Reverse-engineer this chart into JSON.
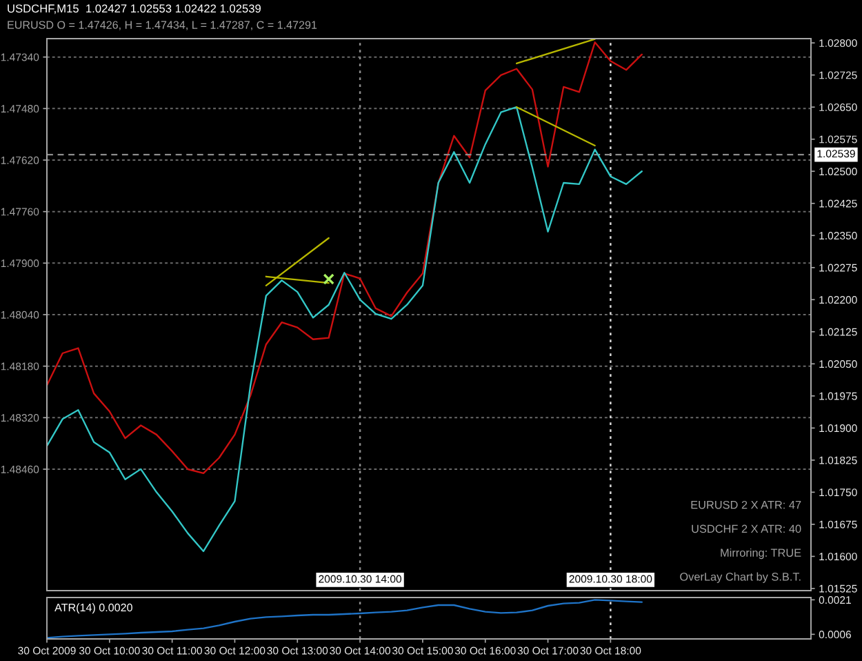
{
  "chart_data": [
    {
      "type": "line",
      "title": "USDCHF,M15  1.02427 1.02553 1.02422 1.02539",
      "subtitle": "EURUSD O = 1.47426, H = 1.47434, L = 1.47287, C = 1.47291",
      "x": [
        "2009-10-30T09:00",
        "2009-10-30T09:15",
        "2009-10-30T09:30",
        "2009-10-30T09:45",
        "2009-10-30T10:00",
        "2009-10-30T10:15",
        "2009-10-30T10:30",
        "2009-10-30T10:45",
        "2009-10-30T11:00",
        "2009-10-30T11:15",
        "2009-10-30T11:30",
        "2009-10-30T11:45",
        "2009-10-30T12:00",
        "2009-10-30T12:15",
        "2009-10-30T12:30",
        "2009-10-30T12:45",
        "2009-10-30T13:00",
        "2009-10-30T13:15",
        "2009-10-30T13:30",
        "2009-10-30T13:45",
        "2009-10-30T14:00",
        "2009-10-30T14:15",
        "2009-10-30T14:30",
        "2009-10-30T14:45",
        "2009-10-30T15:00",
        "2009-10-30T15:15",
        "2009-10-30T15:30",
        "2009-10-30T15:45",
        "2009-10-30T16:00",
        "2009-10-30T16:15",
        "2009-10-30T16:30",
        "2009-10-30T16:45",
        "2009-10-30T17:00",
        "2009-10-30T17:15",
        "2009-10-30T17:30",
        "2009-10-30T17:45",
        "2009-10-30T18:00",
        "2009-10-30T18:15",
        "2009-10-30T18:30"
      ],
      "series": [
        {
          "color": "#cc1010",
          "axis": "y",
          "values": [
            1.48232,
            1.48145,
            1.48131,
            1.48254,
            1.48303,
            1.48376,
            1.48341,
            1.48366,
            1.48411,
            1.4846,
            1.48471,
            1.48429,
            1.48366,
            1.4826,
            1.48121,
            1.48061,
            1.48075,
            1.48107,
            1.48103,
            1.47928,
            1.47942,
            1.48023,
            1.48044,
            1.4798,
            1.47928,
            1.47683,
            1.47554,
            1.47613,
            1.47431,
            1.47389,
            1.47372,
            1.47428,
            1.47638,
            1.47421,
            1.47435,
            1.473,
            1.47351,
            1.47375,
            1.47333
          ]
        },
        {
          "color": "#33c8c8",
          "axis": "y2",
          "values": [
            1.01858,
            1.01921,
            1.01942,
            1.01867,
            1.01843,
            1.0178,
            1.01804,
            1.0175,
            1.01705,
            1.01654,
            1.01612,
            1.01672,
            1.01729,
            1.01999,
            1.02209,
            1.02245,
            1.02218,
            1.02158,
            1.02188,
            1.02263,
            1.022,
            1.02167,
            1.02155,
            1.02188,
            1.02233,
            1.02473,
            1.02545,
            1.02473,
            1.02563,
            1.02638,
            1.0265,
            1.02509,
            1.02359,
            1.02473,
            1.0247,
            1.02551,
            1.02488,
            1.0247,
            1.025
          ]
        },
        {
          "type": "line",
          "color": "#b8b800",
          "axis": "y2",
          "x": [
            "2009-10-30T12:30",
            "2009-10-30T13:30"
          ],
          "values": [
            1.02254,
            1.02239
          ]
        },
        {
          "type": "line",
          "color": "#b8b800",
          "axis": "y2",
          "x": [
            "2009-10-30T12:30",
            "2009-10-30T13:30"
          ],
          "values": [
            1.02233,
            1.02344
          ]
        },
        {
          "type": "line",
          "color": "#b8b800",
          "axis": "y2",
          "x": [
            "2009-10-30T16:30",
            "2009-10-30T17:45"
          ],
          "values": [
            1.02752,
            1.02809
          ]
        },
        {
          "type": "line",
          "color": "#b8b800",
          "axis": "y2",
          "x": [
            "2009-10-30T16:30",
            "2009-10-30T17:45"
          ],
          "values": [
            1.0265,
            1.0256
          ]
        },
        {
          "type": "scatter",
          "color": "#a8f060",
          "axis": "y2",
          "marker": "cross",
          "x": [
            "2009-10-30T13:30"
          ],
          "values": [
            1.02248
          ]
        }
      ],
      "xlim": [
        "2009-10-30T09:00",
        "2009-10-30T21:12"
      ],
      "ylim": [
        1.4879,
        1.4729
      ],
      "yticks": [
        {
          "value": 1.4734,
          "label": "1.47340"
        },
        {
          "value": 1.4748,
          "label": "1.47480"
        },
        {
          "value": 1.4762,
          "label": "1.47620"
        },
        {
          "value": 1.4776,
          "label": "1.47760"
        },
        {
          "value": 1.479,
          "label": "1.47900"
        },
        {
          "value": 1.4804,
          "label": "1.48040"
        },
        {
          "value": 1.4818,
          "label": "1.48180"
        },
        {
          "value": 1.4832,
          "label": "1.48320"
        },
        {
          "value": 1.4846,
          "label": "1.48460"
        }
      ],
      "y2lim": [
        1.0152,
        1.0281
      ],
      "y2ticks": [
        {
          "value": 1.028,
          "label": "1.02800"
        },
        {
          "value": 1.02725,
          "label": "1.02725"
        },
        {
          "value": 1.0265,
          "label": "1.02650"
        },
        {
          "value": 1.02575,
          "label": "1.02575"
        },
        {
          "value": 1.025,
          "label": "1.02500"
        },
        {
          "value": 1.02425,
          "label": "1.02425"
        },
        {
          "value": 1.0235,
          "label": "1.02350"
        },
        {
          "value": 1.02275,
          "label": "1.02275"
        },
        {
          "value": 1.022,
          "label": "1.02200"
        },
        {
          "value": 1.02125,
          "label": "1.02125"
        },
        {
          "value": 1.0205,
          "label": "1.02050"
        },
        {
          "value": 1.01975,
          "label": "1.01975"
        },
        {
          "value": 1.019,
          "label": "1.01900"
        },
        {
          "value": 1.01825,
          "label": "1.01825"
        },
        {
          "value": 1.0175,
          "label": "1.01750"
        },
        {
          "value": 1.01675,
          "label": "1.01675"
        },
        {
          "value": 1.016,
          "label": "1.01600"
        },
        {
          "value": 1.01525,
          "label": "1.01525"
        }
      ],
      "grid": "y",
      "ref_lines": [
        {
          "axis": "x",
          "value": "2009-10-30T14:00",
          "label": "2009.10.30 14:00",
          "color": "#8c8c8c",
          "line_style": "dotted"
        },
        {
          "axis": "x",
          "value": "2009-10-30T18:00",
          "label": "2009.10.30 18:00",
          "color": "#d8d8d8",
          "line_style": "dotted"
        },
        {
          "axis": "y2",
          "value": 1.02539,
          "label": "1.02539",
          "color": "#8c8c8c",
          "line_style": "dashed"
        }
      ],
      "annotations": [
        "EURUSD 2 X ATR: 47",
        "USDCHF 2 X ATR: 40",
        "Mirroring: TRUE",
        "OverLay Chart by S.B.T."
      ],
      "tick_labels": "y"
    },
    {
      "type": "line",
      "title": "ATR(14) 0.0020",
      "x": [
        "2009-10-30T09:00",
        "2009-10-30T09:15",
        "2009-10-30T09:30",
        "2009-10-30T09:45",
        "2009-10-30T10:00",
        "2009-10-30T10:15",
        "2009-10-30T10:30",
        "2009-10-30T10:45",
        "2009-10-30T11:00",
        "2009-10-30T11:15",
        "2009-10-30T11:30",
        "2009-10-30T11:45",
        "2009-10-30T12:00",
        "2009-10-30T12:15",
        "2009-10-30T12:30",
        "2009-10-30T12:45",
        "2009-10-30T13:00",
        "2009-10-30T13:15",
        "2009-10-30T13:30",
        "2009-10-30T13:45",
        "2009-10-30T14:00",
        "2009-10-30T14:15",
        "2009-10-30T14:30",
        "2009-10-30T14:45",
        "2009-10-30T15:00",
        "2009-10-30T15:15",
        "2009-10-30T15:30",
        "2009-10-30T15:45",
        "2009-10-30T16:00",
        "2009-10-30T16:15",
        "2009-10-30T16:30",
        "2009-10-30T16:45",
        "2009-10-30T17:00",
        "2009-10-30T17:15",
        "2009-10-30T17:30",
        "2009-10-30T17:45",
        "2009-10-30T18:00",
        "2009-10-30T18:15",
        "2009-10-30T18:30"
      ],
      "values": [
        0.00045,
        0.0005,
        0.00054,
        0.00057,
        0.0006,
        0.00063,
        0.00067,
        0.0007,
        0.00073,
        0.0008,
        0.00086,
        0.00099,
        0.00115,
        0.00128,
        0.00135,
        0.00138,
        0.00142,
        0.00145,
        0.00145,
        0.00148,
        0.00151,
        0.00155,
        0.00158,
        0.00164,
        0.00177,
        0.00187,
        0.00187,
        0.00171,
        0.00158,
        0.00153,
        0.00155,
        0.00164,
        0.00184,
        0.00194,
        0.00197,
        0.0021,
        0.00207,
        0.00203,
        0.002
      ],
      "color": "#1f74c8",
      "xlim": [
        "2009-10-30T09:00",
        "2009-10-30T21:12"
      ],
      "xticks": [
        {
          "value": "2009-10-30T09:00",
          "label": "30 Oct 2009"
        },
        {
          "value": "2009-10-30T10:00",
          "label": "30 Oct 10:00"
        },
        {
          "value": "2009-10-30T11:00",
          "label": "30 Oct 11:00"
        },
        {
          "value": "2009-10-30T12:00",
          "label": "30 Oct 12:00"
        },
        {
          "value": "2009-10-30T13:00",
          "label": "30 Oct 13:00"
        },
        {
          "value": "2009-10-30T14:00",
          "label": "30 Oct 14:00"
        },
        {
          "value": "2009-10-30T15:00",
          "label": "30 Oct 15:00"
        },
        {
          "value": "2009-10-30T16:00",
          "label": "30 Oct 16:00"
        },
        {
          "value": "2009-10-30T17:00",
          "label": "30 Oct 17:00"
        },
        {
          "value": "2009-10-30T18:00",
          "label": "30 Oct 18:00"
        }
      ],
      "ylim": [
        0.0004,
        0.0022
      ],
      "yticks": [
        0.0021,
        0.0006
      ],
      "ref_lines": [
        {
          "axis": "x",
          "value": "2009-10-30T14:00",
          "color": "#8c8c8c",
          "line_style": "dotted"
        },
        {
          "axis": "x",
          "value": "2009-10-30T18:00",
          "color": "#d8d8d8",
          "line_style": "dotted"
        }
      ]
    }
  ]
}
